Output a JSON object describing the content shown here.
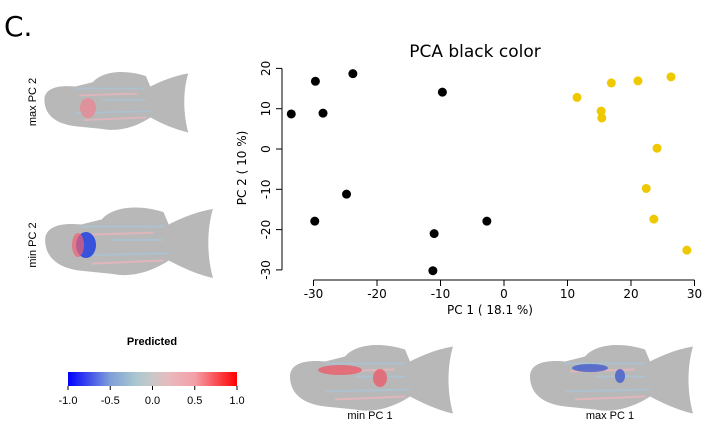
{
  "panel_label": "C.",
  "images": [
    "max PC 2",
    "min PC 2",
    "min PC 1",
    "max PC 1"
  ],
  "colorbar": {
    "title": "Predicted",
    "lim": [
      -1,
      1
    ],
    "ticks": [
      {
        "value": -1,
        "label": "-1.0"
      },
      {
        "value": -0.5,
        "label": "-0.5"
      },
      {
        "value": 0,
        "label": "0.0"
      },
      {
        "value": 0.5,
        "label": "0.5"
      },
      {
        "value": 1,
        "label": "1.0"
      }
    ]
  },
  "chart_data": {
    "type": "scatter",
    "title": "PCA black color",
    "x_label": "PC 1  ( 18.1  %)",
    "y_label": "PC 2  ( 10  %)",
    "xlim": [
      -35,
      31
    ],
    "ylim": [
      -31,
      21
    ],
    "xticks": [
      -30,
      -20,
      -10,
      0,
      10,
      20,
      30
    ],
    "yticks": [
      -30,
      -20,
      -10,
      0,
      10,
      20
    ],
    "series": [
      {
        "color": "#000000",
        "x": [
          -33.5,
          -29.7,
          -28.5,
          -23.8,
          -9.7,
          -24.8,
          -29.8,
          -11.0,
          -2.7,
          -11.2
        ],
        "values": [
          8.7,
          16.8,
          8.9,
          18.7,
          14.1,
          -11.2,
          -17.9,
          -21.0,
          -17.9,
          -30.2
        ]
      },
      {
        "color": "#eec900",
        "x": [
          11.5,
          15.3,
          15.4,
          16.9,
          21.1,
          26.3,
          24.1,
          22.4,
          23.6,
          28.8
        ],
        "values": [
          12.8,
          9.4,
          7.7,
          16.4,
          16.9,
          17.9,
          0.2,
          -9.8,
          -17.4,
          -25.1
        ]
      }
    ]
  }
}
